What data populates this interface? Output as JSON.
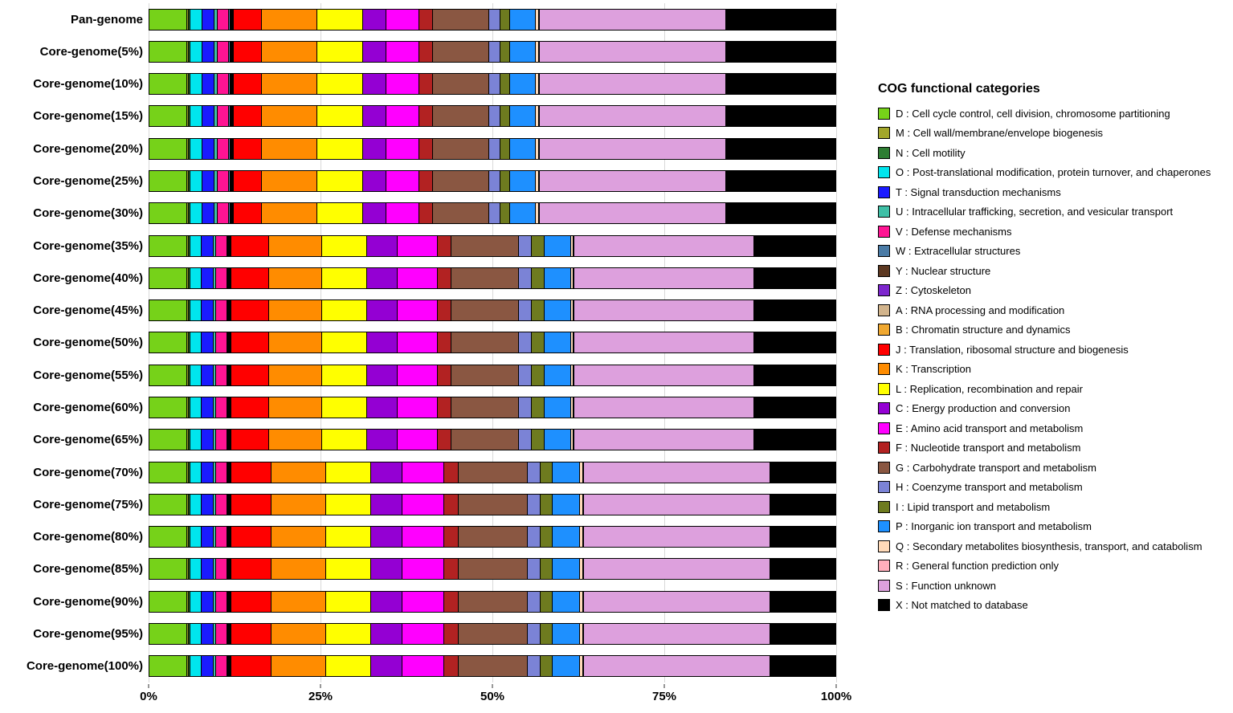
{
  "chart_data": {
    "type": "bar",
    "orientation": "horizontal",
    "stacked": true,
    "units": "percent",
    "grid": true,
    "legend_position": "right",
    "legend_title": "COG functional categories",
    "xlim": [
      0,
      100
    ],
    "x_ticks": [
      "0%",
      "25%",
      "50%",
      "75%",
      "100%"
    ],
    "x_tick_positions": [
      0,
      25,
      50,
      75,
      100
    ],
    "categories": [
      "Pan-genome",
      "Core-genome(5%)",
      "Core-genome(10%)",
      "Core-genome(15%)",
      "Core-genome(20%)",
      "Core-genome(25%)",
      "Core-genome(30%)",
      "Core-genome(35%)",
      "Core-genome(40%)",
      "Core-genome(45%)",
      "Core-genome(50%)",
      "Core-genome(55%)",
      "Core-genome(60%)",
      "Core-genome(65%)",
      "Core-genome(70%)",
      "Core-genome(75%)",
      "Core-genome(80%)",
      "Core-genome(85%)",
      "Core-genome(90%)",
      "Core-genome(95%)",
      "Core-genome(100%)"
    ],
    "series": [
      {
        "code": "D",
        "label": "D : Cell cycle control, cell division, chromosome partitioning",
        "color": "#76D219",
        "values": [
          5.5,
          5.5,
          5.5,
          5.5,
          5.5,
          5.5,
          5.5,
          5.5,
          5.5,
          5.5,
          5.5,
          5.5,
          5.5,
          5.5,
          5.5,
          5.5,
          5.5,
          5.5,
          5.5,
          5.5,
          5.5
        ]
      },
      {
        "code": "M",
        "label": "M : Cell wall/membrane/envelope biogenesis",
        "color": "#A2A62B",
        "values": [
          0.3,
          0.3,
          0.3,
          0.3,
          0.3,
          0.3,
          0.3,
          0.3,
          0.3,
          0.3,
          0.3,
          0.3,
          0.3,
          0.3,
          0.3,
          0.3,
          0.3,
          0.3,
          0.3,
          0.3,
          0.3
        ]
      },
      {
        "code": "N",
        "label": "N : Cell motility",
        "color": "#2E7D32",
        "values": [
          0.15,
          0.15,
          0.15,
          0.15,
          0.15,
          0.15,
          0.15,
          0.15,
          0.15,
          0.15,
          0.15,
          0.15,
          0.15,
          0.15,
          0.15,
          0.15,
          0.15,
          0.15,
          0.15,
          0.15,
          0.15
        ]
      },
      {
        "code": "O",
        "label": "O : Post-translational modification, protein turnover, and chaperones",
        "color": "#00E5EE",
        "values": [
          1.8,
          1.8,
          1.8,
          1.8,
          1.8,
          1.8,
          1.8,
          1.7,
          1.7,
          1.7,
          1.7,
          1.7,
          1.7,
          1.7,
          1.7,
          1.7,
          1.7,
          1.7,
          1.7,
          1.7,
          1.7
        ]
      },
      {
        "code": "T",
        "label": "T : Signal transduction mechanisms",
        "color": "#1A1AFF",
        "values": [
          1.7,
          1.7,
          1.7,
          1.7,
          1.7,
          1.7,
          1.7,
          1.7,
          1.7,
          1.7,
          1.7,
          1.7,
          1.7,
          1.7,
          1.7,
          1.7,
          1.7,
          1.7,
          1.7,
          1.7,
          1.7
        ]
      },
      {
        "code": "U",
        "label": "U : Intracellular trafficking, secretion, and vesicular transport",
        "color": "#3FBFA6",
        "values": [
          0.5,
          0.5,
          0.5,
          0.5,
          0.5,
          0.5,
          0.5,
          0.4,
          0.4,
          0.4,
          0.4,
          0.4,
          0.4,
          0.4,
          0.4,
          0.4,
          0.4,
          0.4,
          0.4,
          0.4,
          0.4
        ]
      },
      {
        "code": "V",
        "label": "V : Defense mechanisms",
        "color": "#FF1493",
        "values": [
          1.7,
          1.7,
          1.7,
          1.7,
          1.7,
          1.7,
          1.7,
          1.6,
          1.6,
          1.6,
          1.6,
          1.6,
          1.6,
          1.6,
          1.6,
          1.6,
          1.6,
          1.6,
          1.6,
          1.6,
          1.6
        ]
      },
      {
        "code": "W",
        "label": "W : Extracellular structures",
        "color": "#4A7BA6",
        "values": [
          0.15,
          0.15,
          0.15,
          0.15,
          0.15,
          0.15,
          0.15,
          0.15,
          0.15,
          0.15,
          0.15,
          0.15,
          0.15,
          0.15,
          0.15,
          0.15,
          0.15,
          0.15,
          0.15,
          0.15,
          0.15
        ]
      },
      {
        "code": "Y",
        "label": "Y : Nuclear structure",
        "color": "#5C3821",
        "values": [
          0.1,
          0.1,
          0.1,
          0.1,
          0.1,
          0.1,
          0.1,
          0.1,
          0.1,
          0.1,
          0.1,
          0.1,
          0.1,
          0.1,
          0.1,
          0.1,
          0.1,
          0.1,
          0.1,
          0.1,
          0.1
        ]
      },
      {
        "code": "Z",
        "label": "Z : Cytoskeleton",
        "color": "#7D26CD",
        "values": [
          0.1,
          0.1,
          0.1,
          0.1,
          0.1,
          0.1,
          0.1,
          0.1,
          0.1,
          0.1,
          0.1,
          0.1,
          0.1,
          0.1,
          0.1,
          0.1,
          0.1,
          0.1,
          0.1,
          0.1,
          0.1
        ]
      },
      {
        "code": "A",
        "label": "A : RNA processing and modification",
        "color": "#D2B48C",
        "values": [
          0.1,
          0.1,
          0.1,
          0.1,
          0.1,
          0.1,
          0.1,
          0.1,
          0.1,
          0.1,
          0.1,
          0.1,
          0.1,
          0.1,
          0.1,
          0.1,
          0.1,
          0.1,
          0.1,
          0.1,
          0.1
        ]
      },
      {
        "code": "B",
        "label": "B : Chromatin structure and dynamics",
        "color": "#F0A830",
        "values": [
          0.1,
          0.1,
          0.1,
          0.1,
          0.1,
          0.1,
          0.1,
          0.1,
          0.1,
          0.1,
          0.1,
          0.1,
          0.1,
          0.1,
          0.1,
          0.1,
          0.1,
          0.1,
          0.1,
          0.1,
          0.1
        ]
      },
      {
        "code": "J",
        "label": "J : Translation, ribosomal structure and biogenesis",
        "color": "#FF0000",
        "values": [
          4.2,
          4.2,
          4.2,
          4.2,
          4.2,
          4.2,
          4.2,
          5.5,
          5.5,
          5.5,
          5.5,
          5.5,
          5.5,
          5.5,
          5.8,
          5.8,
          5.8,
          5.8,
          5.8,
          5.8,
          5.8
        ]
      },
      {
        "code": "K",
        "label": "K : Transcription",
        "color": "#FF8C00",
        "values": [
          8.0,
          8.0,
          8.0,
          8.0,
          8.0,
          8.0,
          8.0,
          7.8,
          7.8,
          7.8,
          7.8,
          7.8,
          7.8,
          7.8,
          8.0,
          8.0,
          8.0,
          8.0,
          8.0,
          8.0,
          8.0
        ]
      },
      {
        "code": "L",
        "label": "L : Replication, recombination and repair",
        "color": "#FFFF00",
        "values": [
          6.7,
          6.7,
          6.7,
          6.7,
          6.7,
          6.7,
          6.7,
          6.5,
          6.5,
          6.5,
          6.5,
          6.5,
          6.5,
          6.5,
          6.6,
          6.6,
          6.6,
          6.6,
          6.6,
          6.6,
          6.6
        ]
      },
      {
        "code": "C",
        "label": "C : Energy production and conversion",
        "color": "#9400D3",
        "values": [
          3.4,
          3.4,
          3.4,
          3.4,
          3.4,
          3.4,
          3.4,
          4.5,
          4.5,
          4.5,
          4.5,
          4.5,
          4.5,
          4.5,
          4.6,
          4.6,
          4.6,
          4.6,
          4.6,
          4.6,
          4.6
        ]
      },
      {
        "code": "E",
        "label": "E : Amino acid transport and metabolism",
        "color": "#FF00FF",
        "values": [
          4.8,
          4.8,
          4.8,
          4.8,
          4.8,
          4.8,
          4.8,
          5.8,
          5.8,
          5.8,
          5.8,
          5.8,
          5.8,
          5.8,
          6.0,
          6.0,
          6.0,
          6.0,
          6.0,
          6.0,
          6.0
        ]
      },
      {
        "code": "F",
        "label": "F : Nucleotide transport and metabolism",
        "color": "#B22222",
        "values": [
          2.0,
          2.0,
          2.0,
          2.0,
          2.0,
          2.0,
          2.0,
          2.1,
          2.1,
          2.1,
          2.1,
          2.1,
          2.1,
          2.1,
          2.2,
          2.2,
          2.2,
          2.2,
          2.2,
          2.2,
          2.2
        ]
      },
      {
        "code": "G",
        "label": "G : Carbohydrate transport and metabolism",
        "color": "#8A5742",
        "values": [
          8.3,
          8.3,
          8.3,
          8.3,
          8.3,
          8.3,
          8.3,
          9.8,
          9.8,
          9.8,
          9.8,
          9.8,
          9.8,
          9.8,
          10.0,
          10.0,
          10.0,
          10.0,
          10.0,
          10.0,
          10.0
        ]
      },
      {
        "code": "H",
        "label": "H : Coenzyme transport and metabolism",
        "color": "#7B83D6",
        "values": [
          1.6,
          1.6,
          1.6,
          1.6,
          1.6,
          1.6,
          1.6,
          1.9,
          1.9,
          1.9,
          1.9,
          1.9,
          1.9,
          1.9,
          1.9,
          1.9,
          1.9,
          1.9,
          1.9,
          1.9,
          1.9
        ]
      },
      {
        "code": "I",
        "label": "I : Lipid transport and metabolism",
        "color": "#6E7B1F",
        "values": [
          1.4,
          1.4,
          1.4,
          1.4,
          1.4,
          1.4,
          1.4,
          1.8,
          1.8,
          1.8,
          1.8,
          1.8,
          1.8,
          1.8,
          1.8,
          1.8,
          1.8,
          1.8,
          1.8,
          1.8,
          1.8
        ]
      },
      {
        "code": "P",
        "label": "P : Inorganic ion transport and metabolism",
        "color": "#1E90FF",
        "values": [
          3.8,
          3.8,
          3.8,
          3.8,
          3.8,
          3.8,
          3.8,
          3.9,
          3.9,
          3.9,
          3.9,
          3.9,
          3.9,
          3.9,
          4.0,
          4.0,
          4.0,
          4.0,
          4.0,
          4.0,
          4.0
        ]
      },
      {
        "code": "Q",
        "label": "Q : Secondary metabolites biosynthesis, transport, and catabolism",
        "color": "#FFDAB9",
        "values": [
          0.4,
          0.4,
          0.4,
          0.4,
          0.4,
          0.4,
          0.4,
          0.4,
          0.4,
          0.4,
          0.4,
          0.4,
          0.4,
          0.4,
          0.4,
          0.4,
          0.4,
          0.4,
          0.4,
          0.4,
          0.4
        ]
      },
      {
        "code": "R",
        "label": "R : General function prediction only",
        "color": "#FFAEBC",
        "values": [
          0.1,
          0.1,
          0.1,
          0.1,
          0.1,
          0.1,
          0.1,
          0.1,
          0.1,
          0.1,
          0.1,
          0.1,
          0.1,
          0.1,
          0.1,
          0.1,
          0.1,
          0.1,
          0.1,
          0.1,
          0.1
        ]
      },
      {
        "code": "S",
        "label": "S : Function unknown",
        "color": "#DDA0DD",
        "values": [
          27.2,
          27.2,
          27.2,
          27.2,
          27.2,
          27.2,
          27.2,
          26.3,
          26.3,
          26.3,
          26.3,
          26.3,
          26.3,
          26.3,
          27.2,
          27.2,
          27.2,
          27.2,
          27.2,
          27.2,
          27.2
        ]
      },
      {
        "code": "X",
        "label": "X : Not matched to database",
        "color": "#000000",
        "values": [
          16.0,
          16.0,
          16.0,
          16.0,
          16.0,
          16.0,
          16.0,
          11.8,
          11.8,
          11.8,
          11.8,
          11.8,
          11.8,
          11.8,
          9.5,
          9.5,
          9.5,
          9.5,
          9.5,
          9.5,
          9.5
        ]
      }
    ]
  }
}
